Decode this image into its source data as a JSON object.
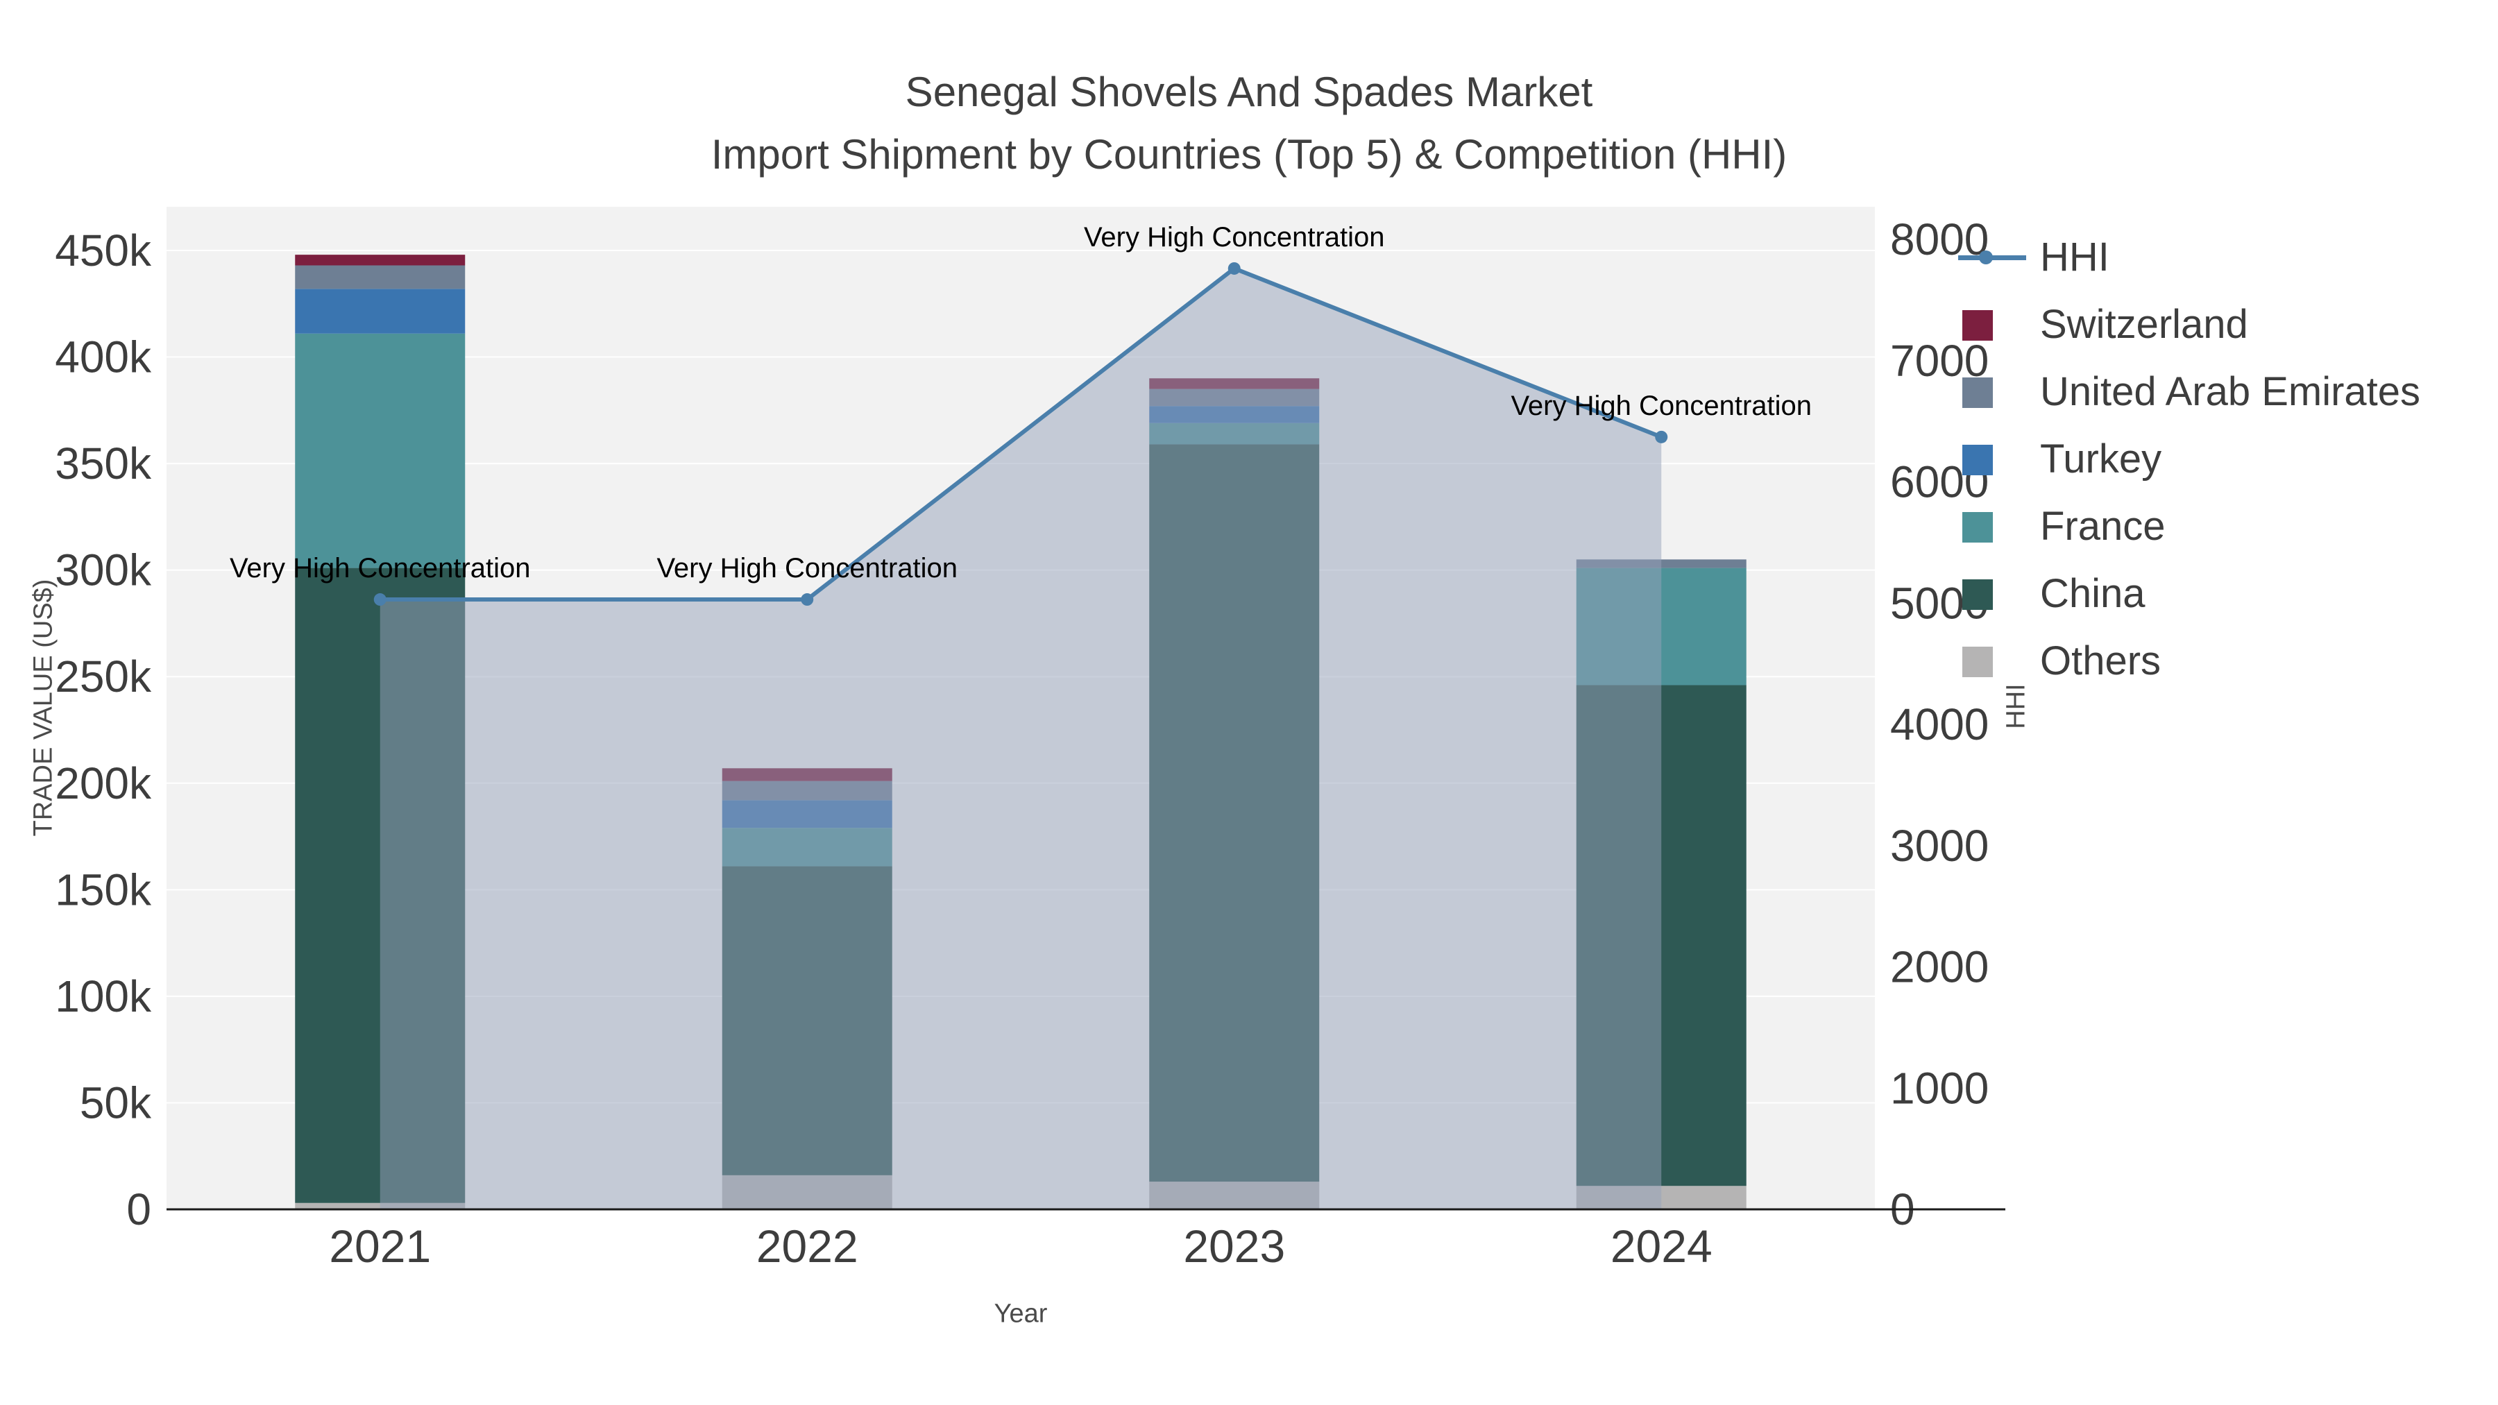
{
  "title": {
    "line1": "Senegal Shovels And Spades Market",
    "line2": "Import Shipment by Countries (Top 5) & Competition (HHI)"
  },
  "chart_data": {
    "type": "stacked-bar-with-line",
    "categories": [
      "2021",
      "2022",
      "2023",
      "2024"
    ],
    "x_label": "Year",
    "y_left": {
      "label": "TRADE VALUE (US$)",
      "max": 450000,
      "ticks": [
        {
          "label": "0",
          "value": 0
        },
        {
          "label": "50k",
          "value": 50000
        },
        {
          "label": "100k",
          "value": 100000
        },
        {
          "label": "150k",
          "value": 150000
        },
        {
          "label": "200k",
          "value": 200000
        },
        {
          "label": "250k",
          "value": 250000
        },
        {
          "label": "300k",
          "value": 300000
        },
        {
          "label": "350k",
          "value": 350000
        },
        {
          "label": "400k",
          "value": 400000
        },
        {
          "label": "450k",
          "value": 450000
        }
      ]
    },
    "y_right": {
      "label": "HHI",
      "max": 8000,
      "ticks": [
        {
          "label": "0",
          "value": 0
        },
        {
          "label": "1000",
          "value": 1000
        },
        {
          "label": "2000",
          "value": 2000
        },
        {
          "label": "3000",
          "value": 3000
        },
        {
          "label": "4000",
          "value": 4000
        },
        {
          "label": "5000",
          "value": 5000
        },
        {
          "label": "6000",
          "value": 6000
        },
        {
          "label": "7000",
          "value": 7000
        },
        {
          "label": "8000",
          "value": 8000
        }
      ]
    },
    "series": [
      {
        "name": "Others",
        "color": "#b5b4b4",
        "values": [
          3000,
          16000,
          13000,
          11000
        ]
      },
      {
        "name": "China",
        "color": "#2e5954",
        "values": [
          298000,
          145000,
          346000,
          235000
        ]
      },
      {
        "name": "France",
        "color": "#4d9298",
        "values": [
          110000,
          18000,
          10000,
          55000
        ]
      },
      {
        "name": "Turkey",
        "color": "#3a75b0",
        "values": [
          21000,
          13000,
          8000,
          0
        ]
      },
      {
        "name": "United Arab Emirates",
        "color": "#6e7f94",
        "values": [
          11000,
          9000,
          8000,
          4000
        ]
      },
      {
        "name": "Switzerland",
        "color": "#7c1f3f",
        "values": [
          5000,
          6000,
          5000,
          0
        ]
      }
    ],
    "hhi_line": {
      "name": "HHI",
      "color": "#4a7fab",
      "fill_color": "rgba(150,162,185,0.5)",
      "values": [
        5030,
        5030,
        7760,
        6370
      ]
    },
    "annotations": [
      "Very High Concentration",
      "Very High Concentration",
      "Very High Concentration",
      "Very High Concentration"
    ]
  },
  "legend": {
    "items": [
      {
        "label": "HHI",
        "color": "#4a7fab",
        "type": "line"
      },
      {
        "label": "Switzerland",
        "color": "#7c1f3f",
        "type": "swatch"
      },
      {
        "label": "United Arab Emirates",
        "color": "#6e7f94",
        "type": "swatch"
      },
      {
        "label": "Turkey",
        "color": "#3a75b0",
        "type": "swatch"
      },
      {
        "label": "France",
        "color": "#4d9298",
        "type": "swatch"
      },
      {
        "label": "China",
        "color": "#2e5954",
        "type": "swatch"
      },
      {
        "label": "Others",
        "color": "#b5b4b4",
        "type": "swatch"
      }
    ]
  }
}
